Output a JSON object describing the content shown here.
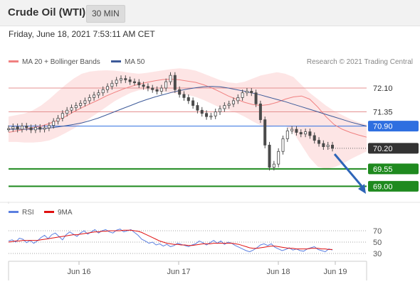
{
  "header": {
    "instrument": "Crude Oil (WTI)",
    "timeframe": "30 MIN",
    "datetime": "Friday, June 18, 2021 7:53:11 AM CET"
  },
  "colors": {
    "ma20_bollinger": "#f08080",
    "bollinger_fill": "#fde0e0",
    "ma50": "#3d5a99",
    "price": "#4a4a4a",
    "resistance": "#e49090",
    "pivot": "#2f6fe0",
    "support": "#1f8a1f",
    "current": "#333333",
    "rsi": "#5b7fe0",
    "rsi_ma": "#e01010",
    "arrow": "#2e65b8"
  },
  "chart_data": [
    {
      "type": "line",
      "subtype": "candlestick",
      "source": "Research © 2021 Trading Central",
      "legend": [
        {
          "name": "MA 20 + Bollinger Bands",
          "color": "#f08080"
        },
        {
          "name": "MA 50",
          "color": "#3d5a99"
        }
      ],
      "x_ticks": [
        "Jun 16",
        "Jun 17",
        "Jun 18",
        "Jun 19"
      ],
      "ylim": [
        68.65,
        72.75
      ],
      "levels": [
        {
          "label": "72.10",
          "value": 72.1,
          "kind": "resistance"
        },
        {
          "label": "71.35",
          "value": 71.35,
          "kind": "resistance"
        },
        {
          "label": "70.90",
          "value": 70.9,
          "kind": "pivot"
        },
        {
          "label": "70.20",
          "value": 70.2,
          "kind": "current"
        },
        {
          "label": "69.55",
          "value": 69.55,
          "kind": "support"
        },
        {
          "label": "69.00",
          "value": 69.0,
          "kind": "support"
        }
      ],
      "price": [
        70.82,
        70.88,
        70.8,
        70.9,
        70.85,
        70.78,
        70.86,
        70.8,
        70.84,
        70.92,
        71.05,
        71.15,
        71.3,
        71.4,
        71.48,
        71.55,
        71.62,
        71.7,
        71.8,
        71.88,
        71.95,
        72.05,
        72.15,
        72.25,
        72.35,
        72.4,
        72.36,
        72.3,
        72.28,
        72.2,
        72.15,
        72.1,
        72.05,
        72.0,
        72.1,
        72.3,
        72.5,
        72.05,
        71.9,
        71.8,
        71.7,
        71.55,
        71.4,
        71.3,
        71.2,
        71.22,
        71.35,
        71.45,
        71.55,
        71.6,
        71.7,
        71.8,
        71.95,
        72.0,
        71.95,
        71.6,
        71.1,
        70.3,
        69.6,
        69.7,
        70.1,
        70.5,
        70.75,
        70.8,
        70.7,
        70.65,
        70.72,
        70.6,
        70.45,
        70.35,
        70.25,
        70.3,
        70.2
      ],
      "ma50": [
        70.8,
        70.8,
        70.8,
        70.81,
        70.82,
        70.84,
        70.87,
        70.91,
        70.95,
        71.0,
        71.07,
        71.15,
        71.25,
        71.35,
        71.45,
        71.55,
        71.65,
        71.74,
        71.82,
        71.89,
        71.96,
        72.02,
        72.07,
        72.11,
        72.14,
        72.15,
        72.14,
        72.1,
        72.05,
        72.0,
        71.94,
        71.88,
        71.81,
        71.74,
        71.67,
        71.59,
        71.51,
        71.43,
        71.35,
        71.27,
        71.19,
        71.11,
        71.03,
        70.96,
        70.9
      ],
      "ma20": [
        70.7,
        70.75,
        70.8,
        70.85,
        70.9,
        70.98,
        71.08,
        71.2,
        71.35,
        71.48,
        71.6,
        71.72,
        71.85,
        71.96,
        72.06,
        72.15,
        72.22,
        72.28,
        72.33,
        72.37,
        72.38,
        72.36,
        72.32,
        72.28,
        72.2,
        72.1,
        71.98,
        71.85,
        71.75,
        71.65,
        71.58,
        71.55,
        71.58,
        71.65,
        71.75,
        71.82,
        71.85,
        71.75,
        71.5,
        71.2,
        70.95,
        70.8,
        70.7,
        70.62,
        70.55
      ],
      "bb_upper": [
        71.2,
        71.25,
        71.3,
        71.4,
        71.55,
        71.75,
        71.98,
        72.2,
        72.4,
        72.55,
        72.62,
        72.65,
        72.66,
        72.65,
        72.62,
        72.58,
        72.55,
        72.58,
        72.62,
        72.66,
        72.7,
        72.72,
        72.7,
        72.65,
        72.55,
        72.45,
        72.35,
        72.28,
        72.25,
        72.3,
        72.4,
        72.5,
        72.55,
        72.6,
        72.55,
        72.45,
        72.2,
        71.95,
        71.75,
        71.55,
        71.38,
        71.25,
        71.12,
        71.02,
        70.95
      ],
      "bb_lower": [
        70.4,
        70.4,
        70.38,
        70.38,
        70.4,
        70.45,
        70.55,
        70.68,
        70.82,
        70.98,
        71.15,
        71.32,
        71.5,
        71.68,
        71.82,
        71.95,
        72.03,
        72.05,
        72.02,
        71.98,
        71.95,
        71.92,
        71.88,
        71.82,
        71.72,
        71.6,
        71.48,
        71.4,
        71.32,
        71.2,
        71.05,
        70.92,
        70.88,
        70.9,
        70.92,
        70.7,
        70.3,
        69.9,
        69.62,
        69.55,
        69.6,
        69.7,
        69.85,
        69.98,
        70.1
      ]
    },
    {
      "type": "line",
      "legend": [
        {
          "name": "RSI",
          "color": "#5b7fe0"
        },
        {
          "name": "9MA",
          "color": "#e01010"
        }
      ],
      "y_ticks": [
        "70",
        "50",
        "30"
      ],
      "ylim": [
        20,
        85
      ],
      "rsi": [
        52,
        54,
        50,
        57,
        55,
        49,
        53,
        48,
        52,
        58,
        62,
        56,
        63,
        66,
        60,
        54,
        63,
        68,
        64,
        60,
        66,
        70,
        64,
        68,
        72,
        66,
        70,
        72,
        68,
        66,
        71,
        73,
        68,
        70,
        72,
        67,
        62,
        55,
        52,
        48,
        50,
        45,
        47,
        43,
        46,
        42,
        44,
        48,
        46,
        44,
        42,
        45,
        47,
        52,
        49,
        45,
        49,
        53,
        48,
        52,
        46,
        50,
        48,
        44,
        41,
        38,
        35,
        33,
        36,
        40,
        45,
        47,
        44,
        47,
        41,
        38,
        35,
        37,
        40,
        36,
        38,
        35,
        34,
        38,
        40,
        42,
        37,
        35,
        33,
        38,
        36
      ],
      "ma9": [
        50,
        51,
        52,
        52,
        53,
        53,
        53,
        53,
        53,
        54,
        55,
        56,
        57,
        58,
        59,
        60,
        61,
        62,
        63,
        63,
        64,
        65,
        66,
        67,
        68,
        68,
        69,
        69,
        70,
        70,
        70,
        70,
        71,
        71,
        71,
        70,
        69,
        67,
        64,
        61,
        58,
        55,
        52,
        50,
        48,
        47,
        46,
        46,
        45,
        45,
        44,
        44,
        45,
        46,
        47,
        47,
        47,
        48,
        48,
        48,
        48,
        48,
        48,
        47,
        46,
        44,
        42,
        40,
        39,
        39,
        40,
        41,
        42,
        43,
        43,
        42,
        41,
        40,
        39,
        39,
        38,
        38,
        38,
        38,
        39,
        39,
        39,
        38,
        38,
        37,
        37
      ]
    }
  ]
}
